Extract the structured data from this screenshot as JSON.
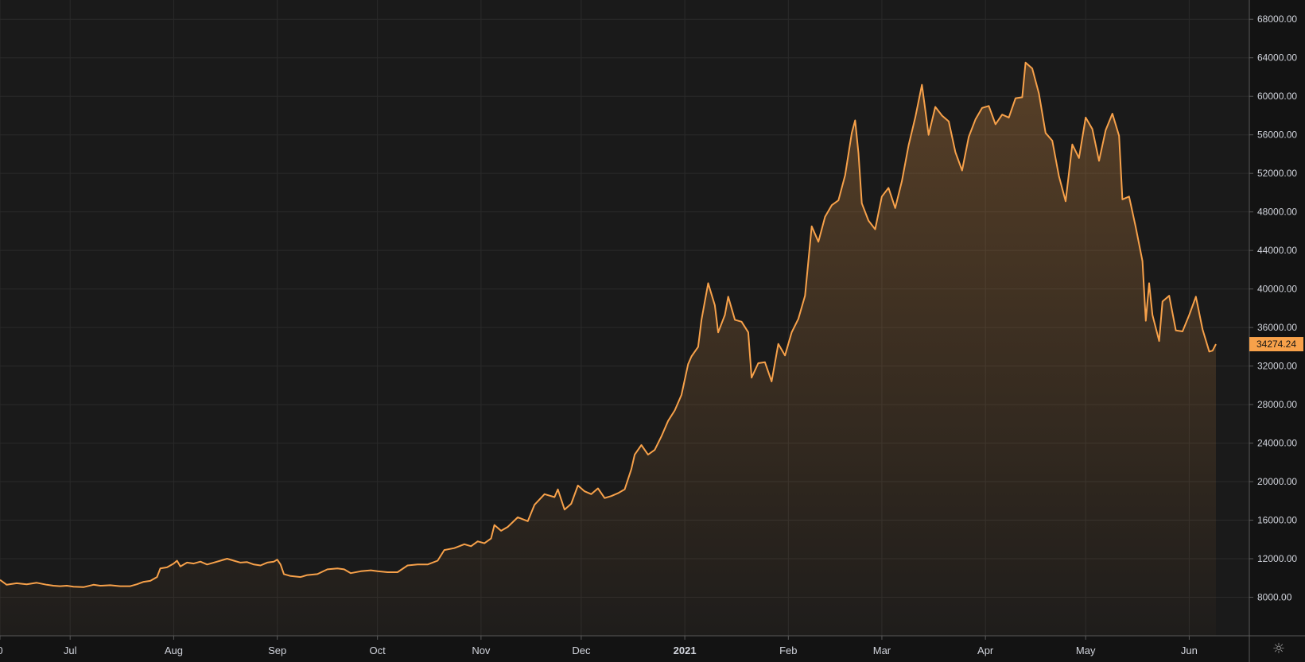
{
  "colors": {
    "background": "#1a1a1a",
    "line": "#f7a14a",
    "grid": "#2a2a2a",
    "text": "#d1d4dc",
    "badge": "#f7a14a"
  },
  "settings_icon": "gear-icon",
  "chart_data": {
    "type": "area",
    "title": "",
    "xlabel": "",
    "ylabel": "",
    "ylim": [
      4000,
      70000
    ],
    "x_range": [
      "2020-06-10",
      "2021-06-19"
    ],
    "y_ticks": [
      "8000.00",
      "12000.00",
      "16000.00",
      "20000.00",
      "24000.00",
      "28000.00",
      "32000.00",
      "36000.00",
      "40000.00",
      "44000.00",
      "48000.00",
      "52000.00",
      "56000.00",
      "60000.00",
      "64000.00",
      "68000.00"
    ],
    "x_ticks": [
      {
        "label": "0",
        "date": "2020-06-10",
        "bold": false
      },
      {
        "label": "Jul",
        "date": "2020-07-01",
        "bold": false
      },
      {
        "label": "Aug",
        "date": "2020-08-01",
        "bold": false
      },
      {
        "label": "Sep",
        "date": "2020-09-01",
        "bold": false
      },
      {
        "label": "Oct",
        "date": "2020-10-01",
        "bold": false
      },
      {
        "label": "Nov",
        "date": "2020-11-01",
        "bold": false
      },
      {
        "label": "Dec",
        "date": "2020-12-01",
        "bold": false
      },
      {
        "label": "2021",
        "date": "2021-01-01",
        "bold": true
      },
      {
        "label": "Feb",
        "date": "2021-02-01",
        "bold": false
      },
      {
        "label": "Mar",
        "date": "2021-03-01",
        "bold": false
      },
      {
        "label": "Apr",
        "date": "2021-04-01",
        "bold": false
      },
      {
        "label": "May",
        "date": "2021-05-01",
        "bold": false
      },
      {
        "label": "Jun",
        "date": "2021-06-01",
        "bold": false
      }
    ],
    "last_value": "34274.24",
    "series": [
      {
        "values": [
          [
            "2020-06-10",
            9800
          ],
          [
            "2020-06-12",
            9300
          ],
          [
            "2020-06-15",
            9450
          ],
          [
            "2020-06-18",
            9350
          ],
          [
            "2020-06-21",
            9500
          ],
          [
            "2020-06-24",
            9300
          ],
          [
            "2020-06-26",
            9200
          ],
          [
            "2020-06-28",
            9150
          ],
          [
            "2020-06-30",
            9200
          ],
          [
            "2020-07-02",
            9100
          ],
          [
            "2020-07-05",
            9050
          ],
          [
            "2020-07-08",
            9300
          ],
          [
            "2020-07-10",
            9200
          ],
          [
            "2020-07-13",
            9250
          ],
          [
            "2020-07-16",
            9150
          ],
          [
            "2020-07-19",
            9150
          ],
          [
            "2020-07-21",
            9350
          ],
          [
            "2020-07-23",
            9600
          ],
          [
            "2020-07-25",
            9700
          ],
          [
            "2020-07-27",
            10100
          ],
          [
            "2020-07-28",
            11000
          ],
          [
            "2020-07-30",
            11100
          ],
          [
            "2020-08-01",
            11500
          ],
          [
            "2020-08-02",
            11800
          ],
          [
            "2020-08-03",
            11200
          ],
          [
            "2020-08-05",
            11600
          ],
          [
            "2020-08-07",
            11500
          ],
          [
            "2020-08-09",
            11700
          ],
          [
            "2020-08-11",
            11400
          ],
          [
            "2020-08-13",
            11600
          ],
          [
            "2020-08-15",
            11800
          ],
          [
            "2020-08-17",
            12000
          ],
          [
            "2020-08-19",
            11800
          ],
          [
            "2020-08-21",
            11600
          ],
          [
            "2020-08-23",
            11650
          ],
          [
            "2020-08-25",
            11400
          ],
          [
            "2020-08-27",
            11300
          ],
          [
            "2020-08-29",
            11600
          ],
          [
            "2020-08-31",
            11700
          ],
          [
            "2020-09-01",
            11900
          ],
          [
            "2020-09-02",
            11400
          ],
          [
            "2020-09-03",
            10400
          ],
          [
            "2020-09-05",
            10200
          ],
          [
            "2020-09-08",
            10100
          ],
          [
            "2020-09-10",
            10300
          ],
          [
            "2020-09-13",
            10400
          ],
          [
            "2020-09-16",
            10900
          ],
          [
            "2020-09-19",
            11000
          ],
          [
            "2020-09-21",
            10900
          ],
          [
            "2020-09-23",
            10500
          ],
          [
            "2020-09-26",
            10700
          ],
          [
            "2020-09-29",
            10800
          ],
          [
            "2020-10-01",
            10700
          ],
          [
            "2020-10-04",
            10600
          ],
          [
            "2020-10-07",
            10600
          ],
          [
            "2020-10-10",
            11300
          ],
          [
            "2020-10-13",
            11400
          ],
          [
            "2020-10-16",
            11400
          ],
          [
            "2020-10-19",
            11800
          ],
          [
            "2020-10-21",
            12900
          ],
          [
            "2020-10-24",
            13100
          ],
          [
            "2020-10-27",
            13500
          ],
          [
            "2020-10-29",
            13300
          ],
          [
            "2020-10-31",
            13800
          ],
          [
            "2020-11-02",
            13600
          ],
          [
            "2020-11-04",
            14100
          ],
          [
            "2020-11-05",
            15500
          ],
          [
            "2020-11-07",
            14900
          ],
          [
            "2020-11-09",
            15300
          ],
          [
            "2020-11-12",
            16300
          ],
          [
            "2020-11-15",
            15900
          ],
          [
            "2020-11-17",
            17600
          ],
          [
            "2020-11-20",
            18700
          ],
          [
            "2020-11-23",
            18400
          ],
          [
            "2020-11-24",
            19200
          ],
          [
            "2020-11-26",
            17100
          ],
          [
            "2020-11-28",
            17700
          ],
          [
            "2020-11-30",
            19600
          ],
          [
            "2020-12-02",
            19000
          ],
          [
            "2020-12-04",
            18700
          ],
          [
            "2020-12-06",
            19300
          ],
          [
            "2020-12-08",
            18300
          ],
          [
            "2020-12-10",
            18500
          ],
          [
            "2020-12-12",
            18800
          ],
          [
            "2020-12-14",
            19200
          ],
          [
            "2020-12-16",
            21300
          ],
          [
            "2020-12-17",
            22800
          ],
          [
            "2020-12-19",
            23800
          ],
          [
            "2020-12-21",
            22800
          ],
          [
            "2020-12-23",
            23300
          ],
          [
            "2020-12-25",
            24700
          ],
          [
            "2020-12-27",
            26300
          ],
          [
            "2020-12-29",
            27400
          ],
          [
            "2020-12-31",
            29000
          ],
          [
            "2021-01-02",
            32200
          ],
          [
            "2021-01-03",
            33000
          ],
          [
            "2021-01-05",
            34000
          ],
          [
            "2021-01-06",
            36800
          ],
          [
            "2021-01-08",
            40600
          ],
          [
            "2021-01-10",
            38300
          ],
          [
            "2021-01-11",
            35500
          ],
          [
            "2021-01-13",
            37300
          ],
          [
            "2021-01-14",
            39200
          ],
          [
            "2021-01-16",
            36800
          ],
          [
            "2021-01-18",
            36600
          ],
          [
            "2021-01-20",
            35500
          ],
          [
            "2021-01-21",
            30800
          ],
          [
            "2021-01-23",
            32300
          ],
          [
            "2021-01-25",
            32400
          ],
          [
            "2021-01-27",
            30400
          ],
          [
            "2021-01-29",
            34300
          ],
          [
            "2021-01-31",
            33100
          ],
          [
            "2021-02-02",
            35500
          ],
          [
            "2021-02-04",
            36900
          ],
          [
            "2021-02-06",
            39300
          ],
          [
            "2021-02-08",
            46500
          ],
          [
            "2021-02-10",
            44900
          ],
          [
            "2021-02-12",
            47500
          ],
          [
            "2021-02-14",
            48700
          ],
          [
            "2021-02-16",
            49200
          ],
          [
            "2021-02-18",
            51800
          ],
          [
            "2021-02-20",
            56200
          ],
          [
            "2021-02-21",
            57500
          ],
          [
            "2021-02-22",
            54100
          ],
          [
            "2021-02-23",
            48900
          ],
          [
            "2021-02-25",
            47100
          ],
          [
            "2021-02-27",
            46200
          ],
          [
            "2021-03-01",
            49600
          ],
          [
            "2021-03-03",
            50500
          ],
          [
            "2021-03-05",
            48400
          ],
          [
            "2021-03-07",
            51200
          ],
          [
            "2021-03-09",
            54900
          ],
          [
            "2021-03-11",
            57800
          ],
          [
            "2021-03-13",
            61200
          ],
          [
            "2021-03-15",
            56000
          ],
          [
            "2021-03-17",
            58900
          ],
          [
            "2021-03-19",
            58000
          ],
          [
            "2021-03-21",
            57400
          ],
          [
            "2021-03-23",
            54200
          ],
          [
            "2021-03-25",
            52300
          ],
          [
            "2021-03-27",
            55800
          ],
          [
            "2021-03-29",
            57600
          ],
          [
            "2021-03-31",
            58800
          ],
          [
            "2021-04-02",
            59000
          ],
          [
            "2021-04-04",
            57100
          ],
          [
            "2021-04-06",
            58100
          ],
          [
            "2021-04-08",
            57800
          ],
          [
            "2021-04-10",
            59800
          ],
          [
            "2021-04-12",
            59900
          ],
          [
            "2021-04-13",
            63500
          ],
          [
            "2021-04-15",
            62900
          ],
          [
            "2021-04-17",
            60300
          ],
          [
            "2021-04-19",
            56200
          ],
          [
            "2021-04-21",
            55400
          ],
          [
            "2021-04-23",
            51700
          ],
          [
            "2021-04-25",
            49100
          ],
          [
            "2021-04-27",
            55000
          ],
          [
            "2021-04-29",
            53600
          ],
          [
            "2021-05-01",
            57800
          ],
          [
            "2021-05-03",
            56600
          ],
          [
            "2021-05-05",
            53300
          ],
          [
            "2021-05-07",
            56500
          ],
          [
            "2021-05-09",
            58200
          ],
          [
            "2021-05-11",
            55900
          ],
          [
            "2021-05-12",
            49300
          ],
          [
            "2021-05-14",
            49600
          ],
          [
            "2021-05-16",
            46400
          ],
          [
            "2021-05-18",
            42900
          ],
          [
            "2021-05-19",
            36700
          ],
          [
            "2021-05-20",
            40600
          ],
          [
            "2021-05-21",
            37300
          ],
          [
            "2021-05-23",
            34600
          ],
          [
            "2021-05-24",
            38700
          ],
          [
            "2021-05-26",
            39300
          ],
          [
            "2021-05-28",
            35700
          ],
          [
            "2021-05-30",
            35600
          ],
          [
            "2021-06-01",
            37300
          ],
          [
            "2021-06-03",
            39200
          ],
          [
            "2021-06-05",
            35800
          ],
          [
            "2021-06-07",
            33500
          ],
          [
            "2021-06-08",
            33600
          ],
          [
            "2021-06-09",
            34274
          ]
        ]
      }
    ]
  }
}
